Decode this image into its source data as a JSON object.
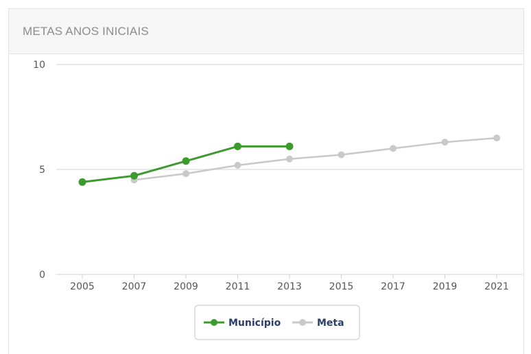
{
  "panel": {
    "title": "METAS ANOS INICIAIS"
  },
  "colors": {
    "municipio": "#3c9a2e",
    "meta": "#c9c9c9",
    "grid": "#d0d0d0",
    "legend_text": "#2c3e6b"
  },
  "chart_data": {
    "type": "line",
    "title": "METAS ANOS INICIAIS",
    "x": [
      "2005",
      "2007",
      "2009",
      "2011",
      "2013",
      "2015",
      "2017",
      "2019",
      "2021"
    ],
    "ylim": [
      0,
      10
    ],
    "yticks": [
      0,
      5,
      10
    ],
    "grid": true,
    "legend_position": "bottom",
    "series": [
      {
        "name": "Município",
        "values": [
          4.4,
          4.7,
          5.4,
          6.1,
          6.1,
          null,
          null,
          null,
          null
        ],
        "color": "#3c9a2e"
      },
      {
        "name": "Meta",
        "values": [
          null,
          4.5,
          4.8,
          5.2,
          5.5,
          5.7,
          6.0,
          6.3,
          6.5
        ],
        "color": "#c9c9c9"
      }
    ]
  }
}
